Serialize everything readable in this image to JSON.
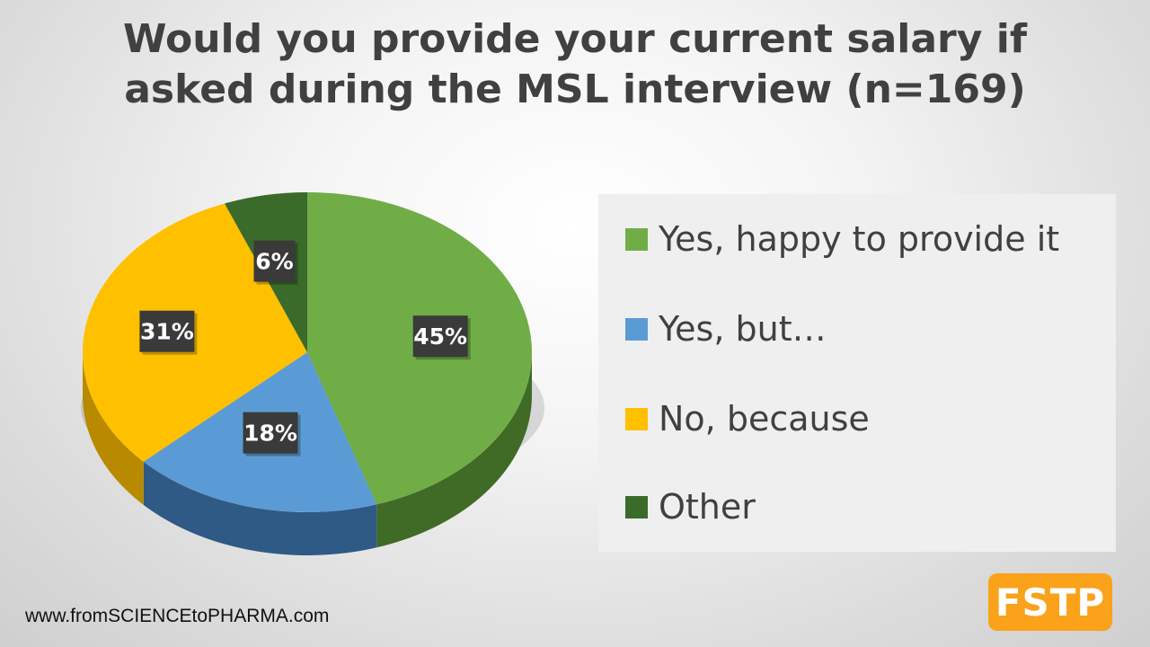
{
  "title_line1": "Would you provide your current salary if",
  "title_line2": "asked during the MSL interview (n=169)",
  "chart_data": {
    "type": "pie",
    "title": "Would you provide your current salary if asked during the MSL interview (n=169)",
    "categories": [
      "Yes, happy to provide it",
      "Yes, but…",
      "No, because",
      "Other"
    ],
    "values": [
      45,
      18,
      31,
      6
    ],
    "labels": [
      "45%",
      "18%",
      "31%",
      "6%"
    ],
    "colors": [
      "#70ad47",
      "#5b9bd5",
      "#ffc000",
      "#3a6b2a"
    ],
    "side_colors": [
      "#3f6b27",
      "#2f5a86",
      "#b98a00",
      "#22451a"
    ],
    "legend_position": "right",
    "start_angle_deg": 0,
    "direction": "clockwise"
  },
  "legend": [
    {
      "label": "Yes, happy to provide it",
      "color": "#70ad47"
    },
    {
      "label": "Yes, but…",
      "color": "#5b9bd5"
    },
    {
      "label": "No, because",
      "color": "#ffc000"
    },
    {
      "label": "Other",
      "color": "#3a6b2a"
    }
  ],
  "footer": "www.fromSCIENCEtoPHARMA.com",
  "logo_text": "FSTP"
}
